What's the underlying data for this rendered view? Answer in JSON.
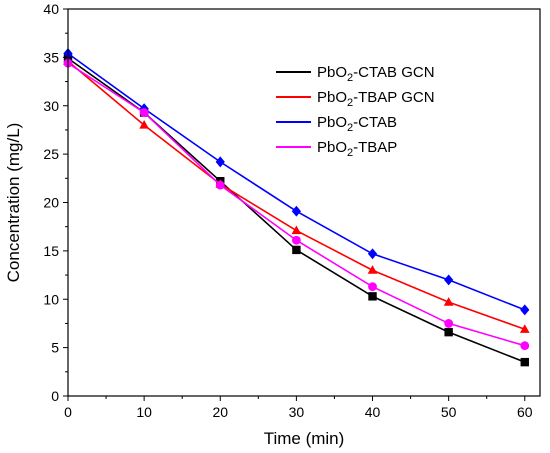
{
  "chart_data": {
    "type": "line",
    "xlabel": "Time (min)",
    "ylabel": "Concentration (mg/L)",
    "xlim": [
      0,
      62
    ],
    "ylim": [
      0,
      40
    ],
    "xticks": [
      0,
      10,
      20,
      30,
      40,
      50,
      60
    ],
    "yticks": [
      0,
      5,
      10,
      15,
      20,
      25,
      30,
      35,
      40
    ],
    "grid": false,
    "legend_position": "top-right",
    "x": [
      0,
      10,
      20,
      30,
      40,
      50,
      60
    ],
    "series": [
      {
        "name_parts": [
          "PbO",
          "2",
          "-CTAB GCN"
        ],
        "color": "#000000",
        "marker": "square",
        "values": [
          34.9,
          29.3,
          22.2,
          15.1,
          10.3,
          6.6,
          3.5
        ]
      },
      {
        "name_parts": [
          "PbO",
          "2",
          "-TBAP GCN"
        ],
        "color": "#ff0000",
        "marker": "triangle",
        "values": [
          34.6,
          28.0,
          21.9,
          17.1,
          13.0,
          9.7,
          6.9
        ]
      },
      {
        "name_parts": [
          "PbO",
          "2",
          "-CTAB"
        ],
        "color": "#0000ff",
        "marker": "diamond",
        "values": [
          35.4,
          29.7,
          24.2,
          19.1,
          14.7,
          12.0,
          8.9
        ]
      },
      {
        "name_parts": [
          "PbO",
          "2",
          "-TBAP"
        ],
        "color": "#ff00ff",
        "marker": "circle",
        "values": [
          34.4,
          29.3,
          21.8,
          16.1,
          11.3,
          7.5,
          5.2
        ]
      }
    ]
  }
}
